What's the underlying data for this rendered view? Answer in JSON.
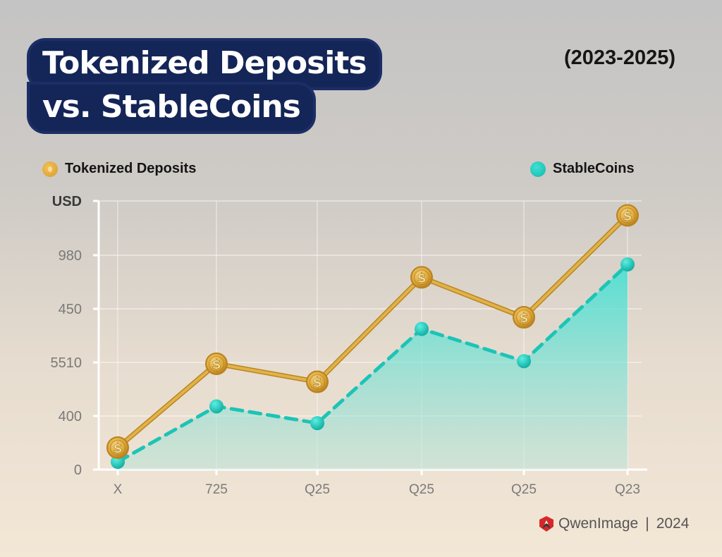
{
  "title": {
    "line1": "Tokenized Deposits",
    "line2": "vs. StableCoins"
  },
  "subtitle": "(2023-2025)",
  "legend": [
    {
      "label": "Tokenized Deposits",
      "icon": "gold-coin-icon",
      "color": "#D9A332"
    },
    {
      "label": "StableCoins",
      "icon": "teal-dot-icon",
      "color": "#1CC4B6"
    }
  ],
  "footer": {
    "brand": "QwenImage",
    "separator": "|",
    "year": "2024"
  },
  "colors": {
    "title_bg": "#142557",
    "gold": "#D9A332",
    "teal": "#1CC4B6",
    "teal_fill": "#5FE0D4"
  },
  "chart_data": {
    "type": "line",
    "title": "Tokenized Deposits vs. StableCoins",
    "subtitle": "(2023-2025)",
    "xlabel": "",
    "ylabel": "USD",
    "y_tick_labels": [
      "0",
      "400",
      "5510",
      "450",
      "980"
    ],
    "y_unit_label": "USD",
    "x_tick_labels": [
      "X",
      "725",
      "Q25",
      "Q25",
      "Q25",
      "Q23"
    ],
    "categories": [
      "X",
      "725",
      "Q25",
      "Q25",
      "Q25",
      "Q23"
    ],
    "ylim_nominal": [
      0,
      1000
    ],
    "grid": true,
    "legend_position": "top",
    "series": [
      {
        "name": "Tokenized Deposits",
        "style": "solid",
        "marker": "dollar-coin",
        "values": [
          85,
          410,
          340,
          745,
          590,
          985
        ]
      },
      {
        "name": "StableCoins",
        "style": "dashed",
        "marker": "circle",
        "area_fill": true,
        "values": [
          30,
          245,
          180,
          545,
          420,
          795
        ]
      }
    ]
  }
}
